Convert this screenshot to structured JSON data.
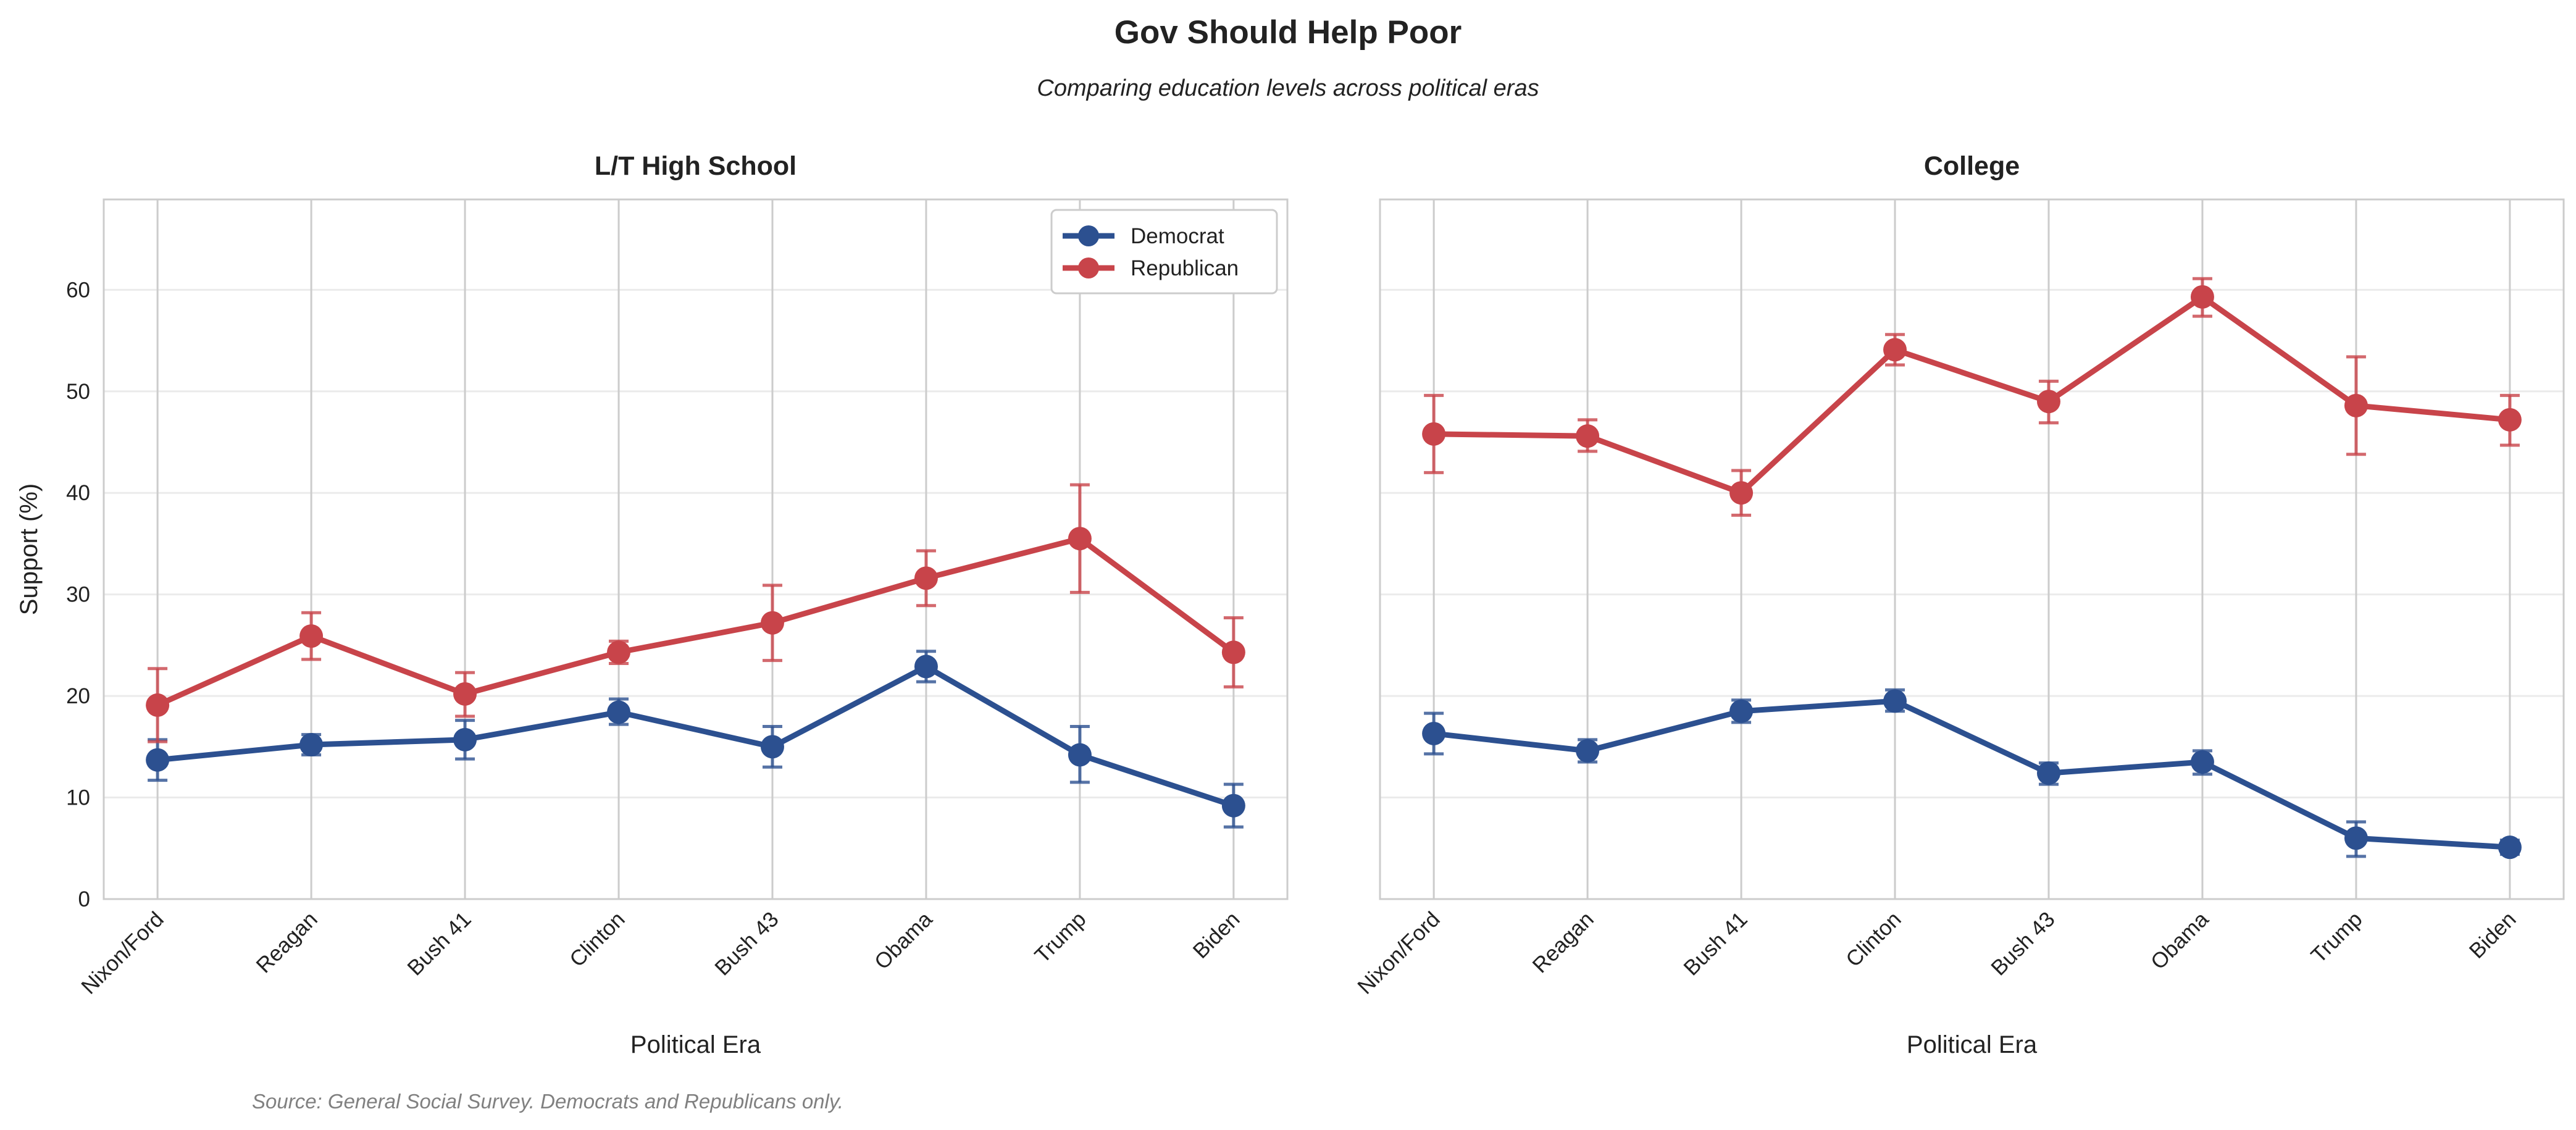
{
  "title": "Gov Should Help Poor",
  "subtitle": "Comparing education levels across political eras",
  "source": "Source: General Social Survey. Democrats and Republicans only.",
  "colors": {
    "Democrat": "#2c5090",
    "Republican": "#c8444a"
  },
  "chart_data": [
    {
      "type": "line",
      "title": "L/T High School",
      "xlabel": "Political Era",
      "ylabel": "Support (%)",
      "categories": [
        "Nixon/Ford",
        "Reagan",
        "Bush 41",
        "Clinton",
        "Bush 43",
        "Obama",
        "Trump",
        "Biden"
      ],
      "ylim": [
        0,
        68.9
      ],
      "yticks": [
        0,
        10,
        20,
        30,
        40,
        50,
        60
      ],
      "grid": true,
      "legend": "top-right",
      "series": [
        {
          "name": "Democrat",
          "values": [
            13.7,
            15.2,
            15.7,
            18.4,
            15.0,
            22.9,
            14.2,
            9.2
          ],
          "err_low": [
            11.7,
            14.2,
            13.8,
            17.2,
            13.0,
            21.4,
            11.5,
            7.1
          ],
          "err_high": [
            15.7,
            16.2,
            17.6,
            19.7,
            17.0,
            24.4,
            17.0,
            11.3
          ]
        },
        {
          "name": "Republican",
          "values": [
            19.1,
            25.9,
            20.2,
            24.3,
            27.2,
            31.6,
            35.5,
            24.3
          ],
          "err_low": [
            15.5,
            23.6,
            18.0,
            23.2,
            23.5,
            28.9,
            30.2,
            20.9
          ],
          "err_high": [
            22.7,
            28.2,
            22.3,
            25.4,
            30.9,
            34.3,
            40.8,
            27.7
          ]
        }
      ]
    },
    {
      "type": "line",
      "title": "College",
      "xlabel": "Political Era",
      "ylabel": "",
      "categories": [
        "Nixon/Ford",
        "Reagan",
        "Bush 41",
        "Clinton",
        "Bush 43",
        "Obama",
        "Trump",
        "Biden"
      ],
      "ylim": [
        0,
        68.9
      ],
      "yticks": [
        0,
        10,
        20,
        30,
        40,
        50,
        60
      ],
      "grid": true,
      "series": [
        {
          "name": "Democrat",
          "values": [
            16.3,
            14.6,
            18.5,
            19.5,
            12.4,
            13.5,
            6.0,
            5.1
          ],
          "err_low": [
            14.3,
            13.5,
            17.4,
            18.5,
            11.3,
            12.3,
            4.2,
            4.4
          ],
          "err_high": [
            18.3,
            15.7,
            19.6,
            20.6,
            13.4,
            14.6,
            7.6,
            5.8
          ]
        },
        {
          "name": "Republican",
          "values": [
            45.8,
            45.6,
            40.0,
            54.1,
            49.0,
            59.3,
            48.6,
            47.2
          ],
          "err_low": [
            42.0,
            44.1,
            37.8,
            52.6,
            46.9,
            57.4,
            43.8,
            44.7
          ],
          "err_high": [
            49.6,
            47.2,
            42.2,
            55.6,
            51.0,
            61.1,
            53.4,
            49.6
          ]
        }
      ]
    }
  ]
}
